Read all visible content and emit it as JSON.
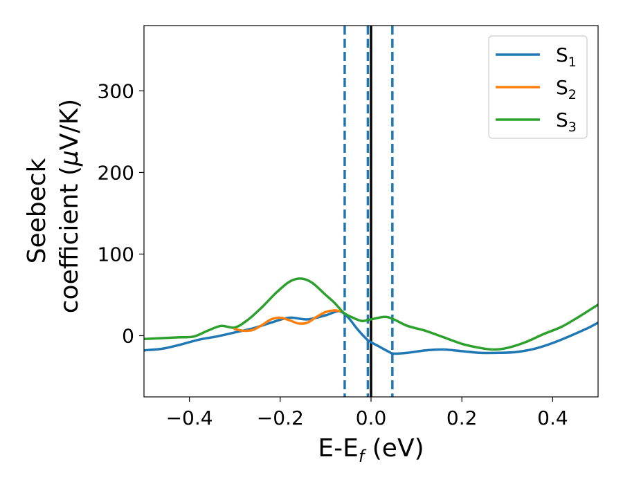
{
  "chart_data": {
    "type": "line",
    "title": "",
    "xlabel": "E-E",
    "xlabel_sub": "f",
    "xlabel_unit": " (eV)",
    "ylabel_line1": "Seebeck",
    "ylabel_line2": "coefficient  (",
    "ylabel_mu": "μ",
    "ylabel_unit": "V/K)",
    "xlim": [
      -0.5,
      0.5
    ],
    "ylim": [
      -75,
      380
    ],
    "xticks": [
      -0.4,
      -0.2,
      0.0,
      0.2,
      0.4
    ],
    "xtick_labels": [
      "−0.4",
      "−0.2",
      "0.0",
      "0.2",
      "0.4"
    ],
    "yticks": [
      0,
      100,
      200,
      300
    ],
    "ytick_labels": [
      "0",
      "100",
      "200",
      "300"
    ],
    "grid": false,
    "legend_position": "top-right",
    "vlines": [
      {
        "x": 0.0,
        "style": "solid",
        "color": "#000000"
      },
      {
        "x": -0.058,
        "style": "dashed",
        "color": "#1f77b4"
      },
      {
        "x": -0.007,
        "style": "dashed",
        "color": "#1f77b4"
      },
      {
        "x": 0.047,
        "style": "dashed",
        "color": "#1f77b4"
      }
    ],
    "series": [
      {
        "name": "S",
        "sub": "1",
        "color": "#1f77b4",
        "x": [
          -0.5,
          -0.46,
          -0.42,
          -0.38,
          -0.34,
          -0.3,
          -0.26,
          -0.22,
          -0.18,
          -0.14,
          -0.1,
          -0.07,
          -0.05,
          -0.03,
          -0.01,
          0.0,
          0.02,
          0.04,
          0.05,
          0.08,
          0.12,
          0.16,
          0.2,
          0.24,
          0.28,
          0.32,
          0.36,
          0.4,
          0.44,
          0.48,
          0.5
        ],
        "y": [
          -18,
          -16,
          -11,
          -5,
          -1,
          4,
          9,
          16,
          22,
          20,
          25,
          30,
          22,
          8,
          -4,
          -8,
          -14,
          -20,
          -22,
          -21,
          -18,
          -17,
          -19,
          -21,
          -21,
          -20,
          -16,
          -9,
          0,
          10,
          16
        ]
      },
      {
        "name": "S",
        "sub": "2",
        "color": "#ff7f0e",
        "x": [
          -0.3,
          -0.28,
          -0.26,
          -0.24,
          -0.22,
          -0.2,
          -0.18,
          -0.16,
          -0.14,
          -0.12,
          -0.1,
          -0.08,
          -0.07
        ],
        "y": [
          8,
          6,
          7,
          13,
          20,
          22,
          19,
          15,
          16,
          23,
          29,
          31,
          30
        ]
      },
      {
        "name": "S",
        "sub": "3",
        "color": "#2ca02c",
        "x": [
          -0.5,
          -0.46,
          -0.42,
          -0.39,
          -0.36,
          -0.33,
          -0.3,
          -0.27,
          -0.24,
          -0.21,
          -0.18,
          -0.155,
          -0.13,
          -0.1,
          -0.08,
          -0.06,
          -0.04,
          -0.02,
          0.0,
          0.03,
          0.05,
          0.08,
          0.12,
          0.16,
          0.2,
          0.24,
          0.27,
          0.3,
          0.34,
          0.38,
          0.42,
          0.46,
          0.5
        ],
        "y": [
          -4,
          -3,
          -2,
          -1,
          6,
          12,
          10,
          20,
          35,
          52,
          66,
          70,
          65,
          50,
          40,
          28,
          22,
          18,
          20,
          23,
          20,
          12,
          6,
          -2,
          -10,
          -15,
          -17,
          -15,
          -8,
          2,
          11,
          24,
          38
        ]
      }
    ]
  }
}
